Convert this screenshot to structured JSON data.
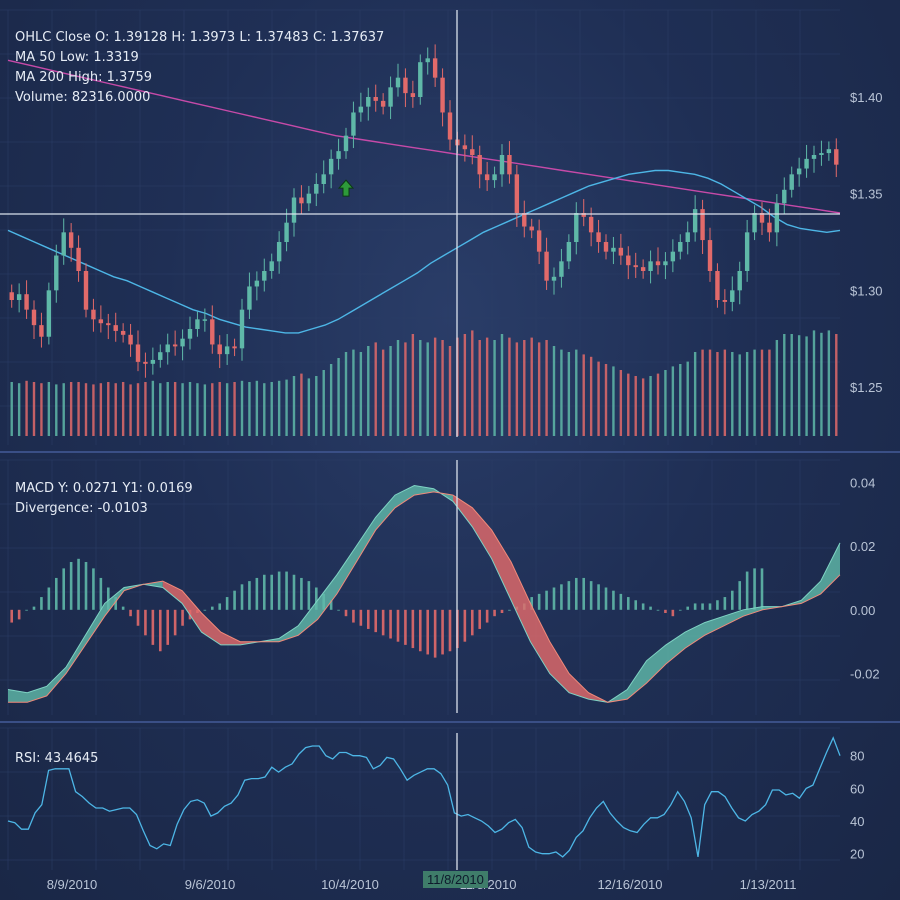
{
  "colors": {
    "up": "#5fb8a8",
    "down": "#e26a6a",
    "ma50": "#4db6e6",
    "ma200": "#c64aa8",
    "rsi": "#4db6e6",
    "crosshair": "#d9e1ec",
    "buy_marker": "#2e9a3a"
  },
  "price_panel": {
    "ohlc_readout": "OHLC Close O: 1.39128 H: 1.3973 L: 1.37483 C: 1.37637",
    "ma50_readout": "MA 50 Low: 1.3319",
    "ma200_readout": "MA 200 High: 1.3759",
    "volume_readout": "Volume: 82316.0000",
    "y_ticks": [
      "$1.40",
      "$1.35",
      "$1.30",
      "$1.25"
    ],
    "cursor_price": 1.3395
  },
  "macd_panel": {
    "macd_readout": "MACD Y: 0.0271 Y1: 0.0169",
    "divergence_readout": "Divergence: -0.0103",
    "y_ticks": [
      "0.04",
      "0.02",
      "0.00",
      "-0.02"
    ]
  },
  "rsi_panel": {
    "rsi_readout": "RSI: 43.4645",
    "y_ticks": [
      "80",
      "60",
      "40",
      "20"
    ]
  },
  "x_axis": {
    "labels": [
      "8/9/2010",
      "9/6/2010",
      "10/4/2010",
      "11/8/2010",
      "12/16/2010",
      "1/13/2011"
    ],
    "cursor_label": "11/8/2010"
  },
  "chart_data": [
    {
      "type": "candlestick",
      "title": "",
      "x_ticks": [
        "8/9/2010",
        "9/6/2010",
        "10/4/2010",
        "11/8/2010",
        "12/16/2010",
        "1/13/2011"
      ],
      "ylim": [
        1.22,
        1.445
      ],
      "close": [
        1.295,
        1.298,
        1.29,
        1.282,
        1.276,
        1.3,
        1.318,
        1.33,
        1.322,
        1.31,
        1.29,
        1.285,
        1.283,
        1.282,
        1.279,
        1.277,
        1.272,
        1.263,
        1.262,
        1.264,
        1.268,
        1.272,
        1.271,
        1.275,
        1.28,
        1.285,
        1.285,
        1.272,
        1.267,
        1.271,
        1.27,
        1.29,
        1.302,
        1.305,
        1.31,
        1.315,
        1.325,
        1.335,
        1.348,
        1.345,
        1.35,
        1.355,
        1.36,
        1.368,
        1.372,
        1.38,
        1.392,
        1.395,
        1.4,
        1.398,
        1.395,
        1.405,
        1.41,
        1.402,
        1.4,
        1.418,
        1.42,
        1.41,
        1.392,
        1.378,
        1.375,
        1.373,
        1.37,
        1.36,
        1.357,
        1.36,
        1.37,
        1.36,
        1.34,
        1.333,
        1.331,
        1.32,
        1.305,
        1.307,
        1.315,
        1.325,
        1.34,
        1.338,
        1.33,
        1.325,
        1.32,
        1.322,
        1.318,
        1.313,
        1.312,
        1.31,
        1.315,
        1.313,
        1.315,
        1.32,
        1.325,
        1.33,
        1.342,
        1.326,
        1.31,
        1.295,
        1.294,
        1.3,
        1.31,
        1.33,
        1.34,
        1.335,
        1.33,
        1.345,
        1.352,
        1.36,
        1.363,
        1.368,
        1.37,
        1.371,
        1.373,
        1.365
      ],
      "ma50": [
        1.331,
        1.328,
        1.325,
        1.322,
        1.319,
        1.316,
        1.313,
        1.31,
        1.307,
        1.305,
        1.302,
        1.299,
        1.296,
        1.293,
        1.29,
        1.288,
        1.285,
        1.283,
        1.281,
        1.28,
        1.279,
        1.278,
        1.278,
        1.28,
        1.282,
        1.285,
        1.289,
        1.293,
        1.297,
        1.301,
        1.305,
        1.309,
        1.314,
        1.318,
        1.322,
        1.326,
        1.33,
        1.333,
        1.336,
        1.339,
        1.342,
        1.345,
        1.348,
        1.351,
        1.354,
        1.356,
        1.358,
        1.36,
        1.361,
        1.362,
        1.362,
        1.361,
        1.36,
        1.358,
        1.355,
        1.351,
        1.347,
        1.343,
        1.338,
        1.334,
        1.332,
        1.331,
        1.33,
        1.331
      ],
      "ma200": [
        1.419,
        1.416,
        1.413,
        1.41,
        1.407,
        1.404,
        1.401,
        1.398,
        1.395,
        1.392,
        1.389,
        1.386,
        1.383,
        1.38,
        1.378,
        1.376,
        1.374,
        1.372,
        1.37,
        1.368,
        1.366,
        1.364,
        1.362,
        1.36,
        1.358,
        1.356,
        1.354,
        1.352,
        1.35,
        1.348,
        1.346,
        1.344,
        1.342,
        1.34
      ],
      "volume_relative": [
        0.45,
        0.44,
        0.46,
        0.45,
        0.44,
        0.45,
        0.43,
        0.44,
        0.45,
        0.45,
        0.44,
        0.43,
        0.44,
        0.45,
        0.44,
        0.45,
        0.43,
        0.44,
        0.45,
        0.46,
        0.44,
        0.45,
        0.45,
        0.44,
        0.45,
        0.44,
        0.43,
        0.44,
        0.45,
        0.44,
        0.45,
        0.46,
        0.45,
        0.46,
        0.44,
        0.45,
        0.46,
        0.47,
        0.5,
        0.52,
        0.48,
        0.5,
        0.55,
        0.6,
        0.65,
        0.7,
        0.72,
        0.7,
        0.75,
        0.78,
        0.72,
        0.75,
        0.8,
        0.78,
        0.85,
        0.8,
        0.78,
        0.82,
        0.8,
        0.75,
        0.82,
        0.85,
        0.88,
        0.8,
        0.82,
        0.8,
        0.85,
        0.82,
        0.78,
        0.8,
        0.82,
        0.78,
        0.8,
        0.75,
        0.72,
        0.7,
        0.72,
        0.68,
        0.66,
        0.62,
        0.6,
        0.58,
        0.55,
        0.52,
        0.5,
        0.48,
        0.5,
        0.52,
        0.55,
        0.58,
        0.6,
        0.62,
        0.7,
        0.72,
        0.72,
        0.7,
        0.72,
        0.7,
        0.68,
        0.7,
        0.72,
        0.72,
        0.72,
        0.8,
        0.85,
        0.85,
        0.84,
        0.83,
        0.88,
        0.86,
        0.88,
        0.85
      ]
    },
    {
      "type": "area",
      "title": "",
      "ylim": [
        -0.033,
        0.047
      ],
      "y_ticks": [
        "0.04",
        "0.02",
        "0.00",
        "-0.02"
      ],
      "series": [
        {
          "values": [
            -0.025,
            -0.026,
            -0.024,
            -0.018,
            -0.008,
            0.002,
            0.007,
            0.008,
            0.007,
            0.002,
            -0.007,
            -0.011,
            -0.011,
            -0.01,
            -0.009,
            -0.005,
            0.003,
            0.011,
            0.02,
            0.029,
            0.036,
            0.039,
            0.038,
            0.034,
            0.026,
            0.016,
            0.003,
            -0.01,
            -0.02,
            -0.026,
            -0.028,
            -0.029,
            -0.025,
            -0.016,
            -0.011,
            -0.007,
            -0.004,
            -0.002,
            0.0,
            0.001,
            0.001,
            0.003,
            0.009,
            0.021
          ]
        },
        {
          "values": [
            -0.029,
            -0.029,
            -0.027,
            -0.02,
            -0.011,
            -0.002,
            0.006,
            0.008,
            0.009,
            0.006,
            -0.001,
            -0.007,
            -0.01,
            -0.01,
            -0.01,
            -0.008,
            -0.003,
            0.005,
            0.015,
            0.025,
            0.032,
            0.036,
            0.037,
            0.036,
            0.032,
            0.025,
            0.015,
            0.002,
            -0.01,
            -0.02,
            -0.026,
            -0.029,
            -0.028,
            -0.023,
            -0.017,
            -0.012,
            -0.008,
            -0.005,
            -0.002,
            0.0,
            0.001,
            0.002,
            0.005,
            0.011
          ]
        }
      ],
      "histogram": [
        -0.004,
        -0.003,
        0.0,
        0.001,
        0.004,
        0.007,
        0.01,
        0.013,
        0.015,
        0.016,
        0.015,
        0.013,
        0.01,
        0.007,
        0.004,
        0.001,
        -0.002,
        -0.005,
        -0.008,
        -0.011,
        -0.013,
        -0.011,
        -0.008,
        -0.005,
        -0.003,
        -0.001,
        0.0,
        0.001,
        0.002,
        0.004,
        0.006,
        0.008,
        0.009,
        0.01,
        0.011,
        0.011,
        0.012,
        0.012,
        0.011,
        0.01,
        0.009,
        0.007,
        0.005,
        0.003,
        0.0,
        -0.002,
        -0.004,
        -0.005,
        -0.006,
        -0.007,
        -0.008,
        -0.009,
        -0.01,
        -0.011,
        -0.012,
        -0.013,
        -0.014,
        -0.015,
        -0.014,
        -0.013,
        -0.012,
        -0.01,
        -0.008,
        -0.006,
        -0.004,
        -0.002,
        -0.001,
        0.0,
        0.001,
        0.002,
        0.004,
        0.005,
        0.006,
        0.007,
        0.008,
        0.009,
        0.01,
        0.01,
        0.009,
        0.008,
        0.007,
        0.006,
        0.005,
        0.004,
        0.003,
        0.002,
        0.001,
        0.0,
        -0.001,
        -0.002,
        0.0,
        0.001,
        0.002,
        0.002,
        0.002,
        0.003,
        0.004,
        0.006,
        0.009,
        0.012,
        0.013,
        0.013
      ]
    },
    {
      "type": "line",
      "title": "",
      "ylim": [
        10,
        97
      ],
      "y_ticks": [
        "80",
        "60",
        "40",
        "20"
      ],
      "values": [
        40,
        39,
        35,
        35,
        45,
        50,
        71,
        72,
        72,
        72,
        58,
        55,
        51,
        48,
        48,
        46,
        47,
        48,
        48,
        44,
        34,
        25,
        23,
        26,
        25,
        38,
        47,
        52,
        53,
        51,
        43,
        45,
        49,
        51,
        56,
        65,
        66,
        66,
        67,
        73,
        70,
        73,
        75,
        81,
        85,
        86,
        86,
        80,
        78,
        82,
        82,
        80,
        80,
        79,
        72,
        74,
        79,
        78,
        72,
        65,
        68,
        70,
        72,
        72,
        69,
        62,
        45,
        43,
        44,
        42,
        40,
        37,
        33,
        35,
        39,
        41,
        36,
        24,
        21,
        20,
        20,
        21,
        18,
        22,
        30,
        34,
        42,
        48,
        52,
        45,
        40,
        36,
        34,
        33,
        38,
        42,
        42,
        44,
        50,
        58,
        52,
        42,
        18,
        50,
        58,
        58,
        55,
        48,
        42,
        40,
        44,
        46,
        50,
        59,
        59,
        56,
        57,
        54,
        60,
        62,
        72,
        82,
        91,
        80
      ]
    }
  ]
}
